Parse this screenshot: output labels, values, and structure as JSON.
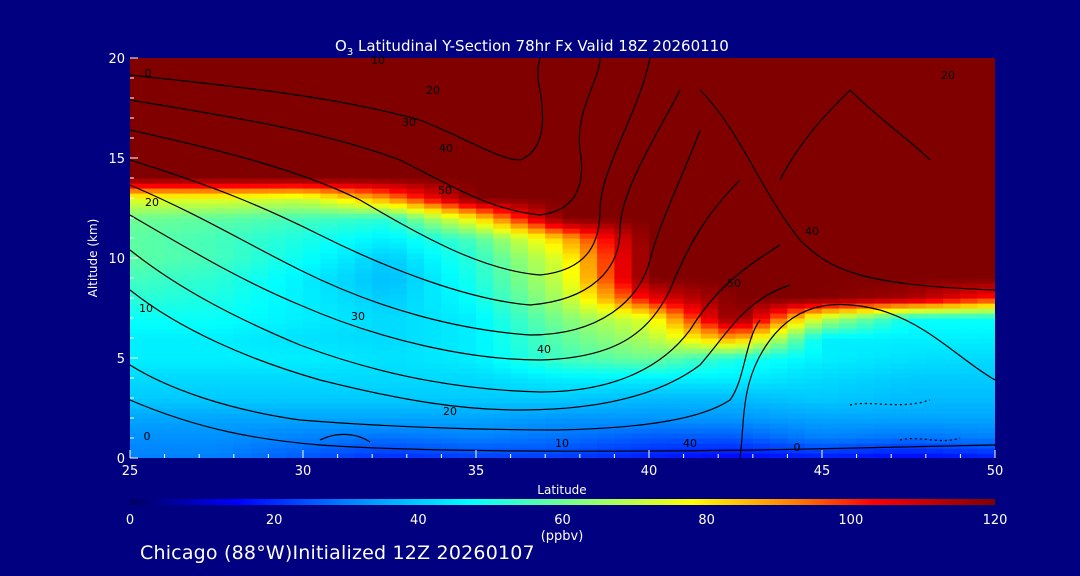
{
  "chart_data": {
    "type": "heatmap",
    "title_species": "O",
    "title_subscript": "3",
    "title_rest": " Latitudinal Y-Section 78hr  Fx Valid 18Z 20260110",
    "xlabel": "Latitude",
    "ylabel": "Altitude (km)",
    "xlim": [
      25,
      50
    ],
    "ylim": [
      0,
      20
    ],
    "xticks": [
      "25",
      "30",
      "35",
      "40",
      "45",
      "50"
    ],
    "yticks": [
      "0",
      "5",
      "10",
      "15",
      "20"
    ],
    "grid": false,
    "lat": [
      25,
      27.5,
      30,
      32.5,
      35,
      37.5,
      40,
      42.5,
      45,
      47.5,
      50
    ],
    "alt": [
      0,
      1,
      2,
      3,
      4,
      5,
      6,
      7,
      8,
      9,
      10,
      11,
      12,
      13,
      14,
      15,
      16,
      17,
      18,
      19,
      20
    ],
    "values_ppbv": [
      [
        30,
        30,
        25,
        20,
        22,
        22,
        18,
        15,
        18,
        15,
        18
      ],
      [
        32,
        32,
        30,
        28,
        30,
        28,
        25,
        25,
        30,
        28,
        30
      ],
      [
        35,
        35,
        35,
        35,
        35,
        33,
        33,
        33,
        35,
        35,
        35
      ],
      [
        40,
        40,
        40,
        40,
        40,
        40,
        38,
        38,
        40,
        38,
        38
      ],
      [
        42,
        42,
        42,
        42,
        42,
        45,
        45,
        45,
        42,
        40,
        40
      ],
      [
        45,
        45,
        45,
        43,
        45,
        55,
        60,
        50,
        45,
        43,
        42
      ],
      [
        45,
        45,
        43,
        42,
        45,
        58,
        68,
        90,
        45,
        45,
        45
      ],
      [
        48,
        48,
        45,
        42,
        45,
        62,
        75,
        120,
        70,
        48,
        48
      ],
      [
        52,
        50,
        45,
        40,
        48,
        68,
        105,
        120,
        120,
        115,
        100
      ],
      [
        55,
        52,
        45,
        38,
        50,
        72,
        120,
        120,
        120,
        120,
        120
      ],
      [
        58,
        55,
        48,
        40,
        52,
        75,
        120,
        120,
        120,
        120,
        120
      ],
      [
        58,
        55,
        50,
        45,
        56,
        85,
        120,
        120,
        120,
        120,
        120
      ],
      [
        60,
        58,
        55,
        52,
        80,
        120,
        120,
        120,
        120,
        120,
        120
      ],
      [
        75,
        75,
        72,
        90,
        120,
        120,
        120,
        120,
        120,
        120,
        120
      ],
      [
        120,
        120,
        120,
        120,
        120,
        120,
        120,
        120,
        120,
        120,
        120
      ],
      [
        120,
        120,
        120,
        120,
        120,
        120,
        120,
        120,
        120,
        120,
        120
      ],
      [
        120,
        120,
        120,
        120,
        120,
        120,
        120,
        120,
        120,
        120,
        120
      ],
      [
        120,
        120,
        120,
        120,
        120,
        120,
        120,
        120,
        120,
        120,
        120
      ],
      [
        120,
        120,
        120,
        120,
        120,
        120,
        120,
        120,
        120,
        120,
        120
      ],
      [
        120,
        120,
        120,
        120,
        120,
        120,
        120,
        120,
        120,
        120,
        120
      ],
      [
        120,
        120,
        120,
        120,
        120,
        120,
        120,
        120,
        120,
        120,
        120
      ]
    ],
    "contour_labels": [
      "0",
      "10",
      "20",
      "30",
      "40",
      "50",
      "20",
      "10",
      "30",
      "40",
      "20",
      "10",
      "0",
      "40",
      "0",
      "20",
      "40",
      "50"
    ],
    "colorbar": {
      "range": [
        0,
        120
      ],
      "ticks": [
        "0",
        "20",
        "40",
        "60",
        "80",
        "100",
        "120"
      ],
      "unit": "(ppbv)",
      "stops": [
        [
          0,
          "#000060"
        ],
        [
          15,
          "#0000ff"
        ],
        [
          30,
          "#0080ff"
        ],
        [
          47,
          "#00ffff"
        ],
        [
          62,
          "#80ff80"
        ],
        [
          78,
          "#ffff00"
        ],
        [
          92,
          "#ff8000"
        ],
        [
          103,
          "#ff0000"
        ],
        [
          120,
          "#800000"
        ]
      ]
    }
  },
  "footer": "Chicago (88°W)Initialized 12Z 20260107",
  "colors": {
    "background": "#000080",
    "text": "#ffffff",
    "contour": "#000000"
  }
}
